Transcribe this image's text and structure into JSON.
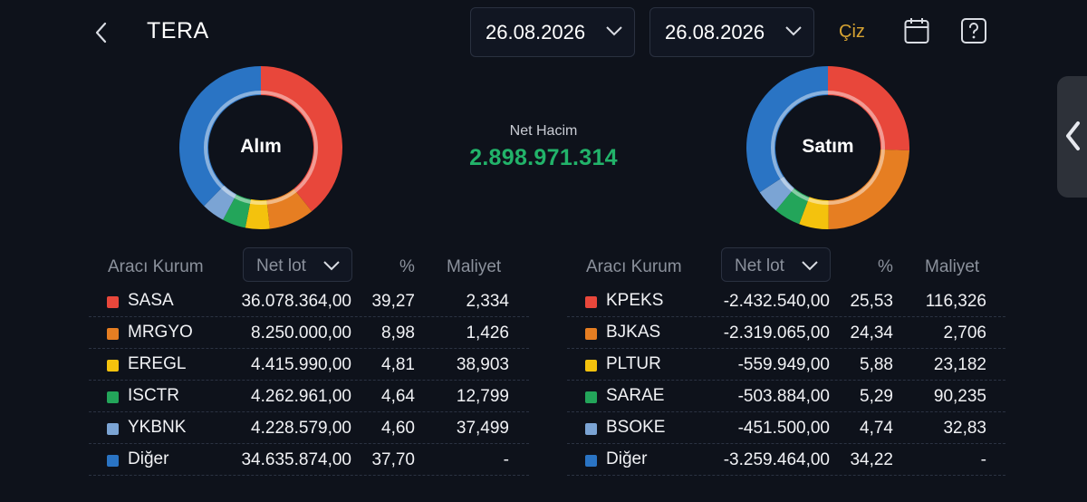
{
  "header": {
    "title": "TERA",
    "date_start": "26.08.2026",
    "date_end": "26.08.2026",
    "draw_label": "Çiz",
    "icons": [
      "back-chevron-icon",
      "calendar-icon",
      "help-icon",
      "chevron-down-icon"
    ]
  },
  "colors": {
    "red": "#e8473b",
    "orange": "#e67e22",
    "yellow": "#f4c20d",
    "green": "#23a55a",
    "lightblue": "#7ba4d4",
    "blue": "#2a74c4",
    "accent_green": "#22b36a",
    "accent_gold": "#d7a332"
  },
  "summary": {
    "net_hacim_label": "Net Hacim",
    "net_hacim_value": "2.898.971.314"
  },
  "buy": {
    "donut_label": "Alım",
    "columns": {
      "broker": "Aracı Kurum",
      "netlot": "Net lot",
      "pct": "%",
      "cost": "Maliyet"
    },
    "rows": [
      {
        "name": "SASA",
        "netlot": "36.078.364,00",
        "pct": "39,27",
        "cost": "2,334",
        "color": "#e8473b",
        "share": 39.27
      },
      {
        "name": "MRGYO",
        "netlot": "8.250.000,00",
        "pct": "8,98",
        "cost": "1,426",
        "color": "#e67e22",
        "share": 8.98
      },
      {
        "name": "EREGL",
        "netlot": "4.415.990,00",
        "pct": "4,81",
        "cost": "38,903",
        "color": "#f4c20d",
        "share": 4.81
      },
      {
        "name": "ISCTR",
        "netlot": "4.262.961,00",
        "pct": "4,64",
        "cost": "12,799",
        "color": "#23a55a",
        "share": 4.64
      },
      {
        "name": "YKBNK",
        "netlot": "4.228.579,00",
        "pct": "4,60",
        "cost": "37,499",
        "color": "#7ba4d4",
        "share": 4.6
      },
      {
        "name": "Diğer",
        "netlot": "34.635.874,00",
        "pct": "37,70",
        "cost": "-",
        "color": "#2a74c4",
        "share": 37.7
      }
    ]
  },
  "sell": {
    "donut_label": "Satım",
    "columns": {
      "broker": "Aracı Kurum",
      "netlot": "Net lot",
      "pct": "%",
      "cost": "Maliyet"
    },
    "rows": [
      {
        "name": "KPEKS",
        "netlot": "-2.432.540,00",
        "pct": "25,53",
        "cost": "116,326",
        "color": "#e8473b",
        "share": 25.53
      },
      {
        "name": "BJKAS",
        "netlot": "-2.319.065,00",
        "pct": "24,34",
        "cost": "2,706",
        "color": "#e67e22",
        "share": 24.34
      },
      {
        "name": "PLTUR",
        "netlot": "-559.949,00",
        "pct": "5,88",
        "cost": "23,182",
        "color": "#f4c20d",
        "share": 5.88
      },
      {
        "name": "SARAE",
        "netlot": "-503.884,00",
        "pct": "5,29",
        "cost": "90,235",
        "color": "#23a55a",
        "share": 5.29
      },
      {
        "name": "BSOKE",
        "netlot": "-451.500,00",
        "pct": "4,74",
        "cost": "32,83",
        "color": "#7ba4d4",
        "share": 4.74
      },
      {
        "name": "Diğer",
        "netlot": "-3.259.464,00",
        "pct": "34,22",
        "cost": "-",
        "color": "#2a74c4",
        "share": 34.22
      }
    ]
  }
}
